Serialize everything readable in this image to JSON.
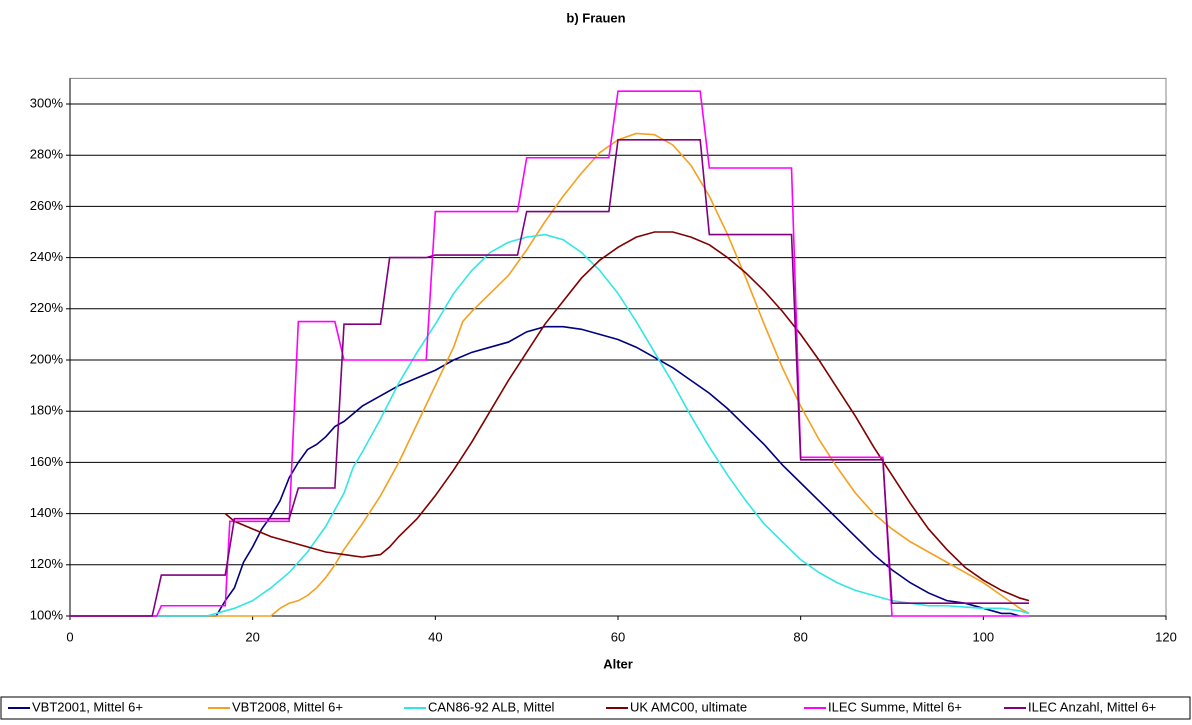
{
  "chart_data": {
    "type": "line",
    "title": "b) Frauen",
    "x_label": "Alter",
    "xlim": [
      0,
      120
    ],
    "xticks": [
      0,
      20,
      40,
      60,
      80,
      100,
      120
    ],
    "ylim": [
      100,
      310
    ],
    "yticks": [
      {
        "value": 100,
        "label": "100%"
      },
      {
        "value": 120,
        "label": "120%"
      },
      {
        "value": 140,
        "label": "140%"
      },
      {
        "value": 160,
        "label": "160%"
      },
      {
        "value": 180,
        "label": "180%"
      },
      {
        "value": 200,
        "label": "200%"
      },
      {
        "value": 220,
        "label": "220%"
      },
      {
        "value": 240,
        "label": "240%"
      },
      {
        "value": 260,
        "label": "260%"
      },
      {
        "value": 280,
        "label": "280%"
      },
      {
        "value": 300,
        "label": "300%"
      }
    ],
    "grid": true,
    "legend": "bottom",
    "series": [
      {
        "name": "VBT2001, Mittel 6+",
        "color": "#000080",
        "x": [
          0,
          16,
          17,
          18,
          19,
          20,
          21,
          22,
          23,
          24,
          25,
          26,
          27,
          28,
          29,
          30,
          32,
          34,
          36,
          38,
          40,
          42,
          44,
          46,
          48,
          50,
          52,
          54,
          56,
          58,
          60,
          62,
          64,
          66,
          68,
          70,
          72,
          74,
          76,
          78,
          80,
          82,
          84,
          86,
          88,
          90,
          92,
          94,
          96,
          98,
          100,
          102,
          103,
          104
        ],
        "values": [
          100,
          100,
          106,
          111,
          121,
          127,
          134,
          139,
          145,
          154,
          160,
          165,
          167,
          170,
          174,
          176,
          182,
          186,
          190,
          193,
          196,
          200,
          203,
          205,
          207,
          211,
          213,
          213,
          212,
          210,
          208,
          205,
          201,
          197,
          192,
          187,
          181,
          174,
          167,
          159,
          152,
          145,
          138,
          131,
          124,
          118,
          113,
          109,
          106,
          105,
          103,
          101,
          101,
          100
        ]
      },
      {
        "name": "VBT2008, Mittel 6+",
        "color": "#f5a020",
        "x": [
          0,
          22,
          23,
          24,
          25,
          26,
          27,
          28,
          29,
          30,
          32,
          34,
          36,
          38,
          40,
          42,
          43,
          44,
          46,
          48,
          50,
          52,
          54,
          56,
          58,
          60,
          62,
          64,
          66,
          68,
          70,
          72,
          74,
          76,
          78,
          80,
          82,
          84,
          86,
          88,
          90,
          92,
          94,
          96,
          98,
          100,
          102,
          104,
          105
        ],
        "values": [
          100,
          100,
          103,
          105,
          106,
          108,
          111,
          115,
          120,
          126,
          136,
          147,
          160,
          175,
          190,
          205,
          215,
          219,
          226,
          233,
          243,
          254,
          264,
          273,
          281,
          286,
          288.5,
          288,
          284,
          276,
          264,
          249,
          232,
          214,
          197,
          182,
          169,
          158,
          148,
          140,
          134,
          129,
          125,
          121,
          117,
          113,
          108,
          103,
          101
        ]
      },
      {
        "name": "CAN86-92 ALB, Mittel",
        "color": "#33e6e6",
        "x": [
          0,
          15,
          16,
          18,
          20,
          22,
          24,
          26,
          28,
          30,
          31,
          32,
          34,
          36,
          38,
          40,
          42,
          44,
          46,
          48,
          50,
          52,
          54,
          56,
          58,
          60,
          62,
          64,
          66,
          68,
          70,
          72,
          74,
          76,
          78,
          80,
          82,
          84,
          86,
          88,
          90,
          92,
          94,
          96,
          98,
          100,
          102,
          104,
          105
        ],
        "values": [
          100,
          100,
          101,
          103,
          106,
          111,
          117,
          125,
          135,
          148,
          158,
          164,
          177,
          191,
          203,
          214,
          226,
          235,
          242,
          246,
          248,
          249,
          247,
          242,
          235,
          226,
          215,
          203,
          191,
          178,
          166,
          155,
          145,
          136,
          129,
          122,
          117,
          113,
          110,
          108,
          106,
          105,
          104,
          104,
          103.5,
          103,
          103,
          102,
          101
        ]
      },
      {
        "name": "UK AMC00, ultimate",
        "color": "#800000",
        "x": [
          17,
          18,
          20,
          22,
          24,
          26,
          28,
          30,
          32,
          33,
          34,
          35,
          36,
          38,
          40,
          42,
          44,
          46,
          48,
          50,
          52,
          54,
          56,
          58,
          60,
          62,
          64,
          66,
          68,
          70,
          72,
          74,
          76,
          78,
          80,
          82,
          84,
          86,
          88,
          90,
          92,
          94,
          96,
          98,
          100,
          102,
          104,
          105
        ],
        "values": [
          140,
          137,
          134,
          131,
          129,
          127,
          125,
          124,
          123,
          123.5,
          124,
          127,
          131,
          138,
          147,
          157,
          168,
          180,
          192,
          203,
          214,
          223,
          232,
          239,
          244,
          248,
          250,
          250,
          248,
          245,
          240,
          234,
          227,
          219,
          210,
          200,
          189,
          178,
          166,
          155,
          144,
          134,
          126,
          119,
          114,
          110,
          107,
          106
        ]
      },
      {
        "name": "ILEC Summe, Mittel 6+",
        "color": "#ff00ff",
        "x": [
          0,
          9.5,
          10,
          17,
          17.5,
          24,
          25,
          29,
          30,
          39,
          40,
          49,
          50,
          59,
          60,
          69,
          70,
          79,
          80,
          89,
          90,
          105
        ],
        "values": [
          100,
          100,
          104,
          104,
          137,
          137,
          215,
          215,
          200,
          200,
          258,
          258,
          279,
          279,
          305,
          305,
          275,
          275,
          162,
          162,
          100,
          100
        ]
      },
      {
        "name": "ILEC Anzahl, Mittel 6+",
        "color": "#800080",
        "x": [
          0,
          9,
          10,
          17,
          18,
          24,
          25,
          29,
          30,
          34,
          35,
          39,
          40,
          49,
          50,
          59,
          60,
          69,
          70,
          79,
          80,
          89,
          90,
          105
        ],
        "values": [
          100,
          100,
          116,
          116,
          138,
          138,
          150,
          150,
          214,
          214,
          240,
          240,
          241,
          241,
          258,
          258,
          286,
          286,
          249,
          249,
          161,
          161,
          105,
          105
        ]
      }
    ]
  }
}
